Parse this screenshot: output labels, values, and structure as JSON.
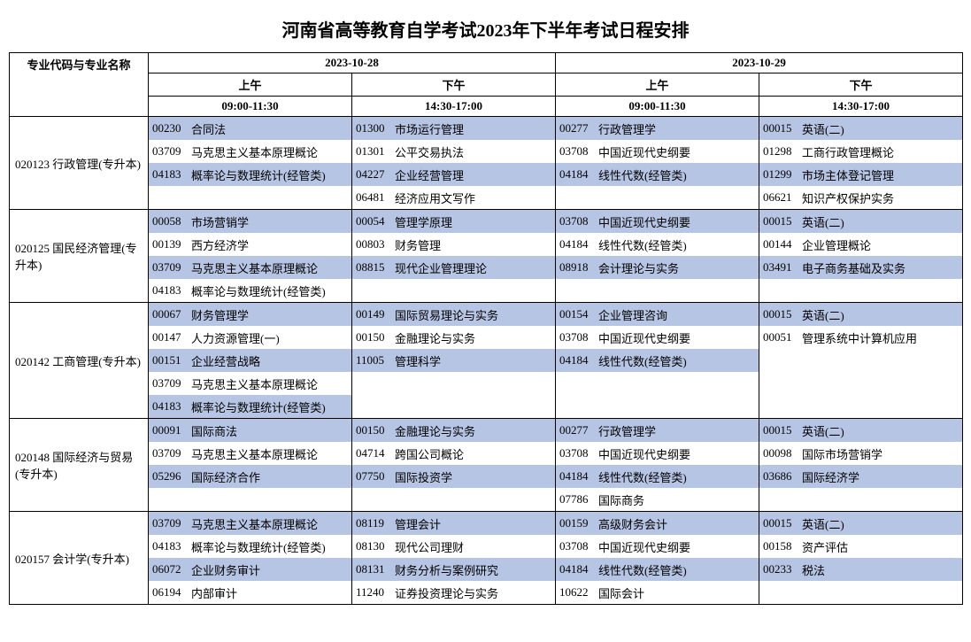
{
  "title": "河南省高等教育自学考试2023年下半年考试日程安排",
  "header": {
    "major_col": "专业代码与专业名称",
    "day1": "2023-10-28",
    "day2": "2023-10-29",
    "am": "上午",
    "pm": "下午",
    "am_time": "09:00-11:30",
    "pm_time": "14:30-17:00"
  },
  "colors": {
    "highlight_bg": "#b7c5e4",
    "border": "#000000"
  },
  "majors": [
    {
      "code": "020123",
      "name": "行政管理(专升本)",
      "sessions": [
        [
          {
            "code": "00230",
            "name": "合同法",
            "hl": true
          },
          {
            "code": "03709",
            "name": "马克思主义基本原理概论",
            "hl": false
          },
          {
            "code": "04183",
            "name": "概率论与数理统计(经管类)",
            "hl": true
          },
          {
            "code": "",
            "name": "",
            "hl": false
          }
        ],
        [
          {
            "code": "01300",
            "name": "市场运行管理",
            "hl": true
          },
          {
            "code": "01301",
            "name": "公平交易执法",
            "hl": false
          },
          {
            "code": "04227",
            "name": "企业经营管理",
            "hl": true
          },
          {
            "code": "06481",
            "name": "经济应用文写作",
            "hl": false
          }
        ],
        [
          {
            "code": "00277",
            "name": "行政管理学",
            "hl": true
          },
          {
            "code": "03708",
            "name": "中国近现代史纲要",
            "hl": false
          },
          {
            "code": "04184",
            "name": "线性代数(经管类)",
            "hl": true
          },
          {
            "code": "",
            "name": "",
            "hl": false
          }
        ],
        [
          {
            "code": "00015",
            "name": "英语(二)",
            "hl": true
          },
          {
            "code": "01298",
            "name": "工商行政管理概论",
            "hl": false
          },
          {
            "code": "01299",
            "name": "市场主体登记管理",
            "hl": true
          },
          {
            "code": "06621",
            "name": "知识产权保护实务",
            "hl": false
          }
        ]
      ]
    },
    {
      "code": "020125",
      "name": "国民经济管理(专升本)",
      "sessions": [
        [
          {
            "code": "00058",
            "name": "市场营销学",
            "hl": true
          },
          {
            "code": "00139",
            "name": "西方经济学",
            "hl": false
          },
          {
            "code": "03709",
            "name": "马克思主义基本原理概论",
            "hl": true
          },
          {
            "code": "04183",
            "name": "概率论与数理统计(经管类)",
            "hl": false
          }
        ],
        [
          {
            "code": "00054",
            "name": "管理学原理",
            "hl": true
          },
          {
            "code": "00803",
            "name": "财务管理",
            "hl": false
          },
          {
            "code": "08815",
            "name": "现代企业管理理论",
            "hl": true
          },
          {
            "code": "",
            "name": "",
            "hl": false
          }
        ],
        [
          {
            "code": "03708",
            "name": "中国近现代史纲要",
            "hl": true
          },
          {
            "code": "04184",
            "name": "线性代数(经管类)",
            "hl": false
          },
          {
            "code": "08918",
            "name": "会计理论与实务",
            "hl": true
          },
          {
            "code": "",
            "name": "",
            "hl": false
          }
        ],
        [
          {
            "code": "00015",
            "name": "英语(二)",
            "hl": true
          },
          {
            "code": "00144",
            "name": "企业管理概论",
            "hl": false
          },
          {
            "code": "03491",
            "name": "电子商务基础及实务",
            "hl": true
          },
          {
            "code": "",
            "name": "",
            "hl": false
          }
        ]
      ]
    },
    {
      "code": "020142",
      "name": "工商管理(专升本)",
      "sessions": [
        [
          {
            "code": "00067",
            "name": "财务管理学",
            "hl": true
          },
          {
            "code": "00147",
            "name": "人力资源管理(一)",
            "hl": false
          },
          {
            "code": "00151",
            "name": "企业经营战略",
            "hl": true
          },
          {
            "code": "03709",
            "name": "马克思主义基本原理概论",
            "hl": false
          },
          {
            "code": "04183",
            "name": "概率论与数理统计(经管类)",
            "hl": true
          }
        ],
        [
          {
            "code": "00149",
            "name": "国际贸易理论与实务",
            "hl": true
          },
          {
            "code": "00150",
            "name": "金融理论与实务",
            "hl": false
          },
          {
            "code": "11005",
            "name": "管理科学",
            "hl": true
          },
          {
            "code": "",
            "name": "",
            "hl": false
          },
          {
            "code": "",
            "name": "",
            "hl": false
          }
        ],
        [
          {
            "code": "00154",
            "name": "企业管理咨询",
            "hl": true
          },
          {
            "code": "03708",
            "name": "中国近现代史纲要",
            "hl": false
          },
          {
            "code": "04184",
            "name": "线性代数(经管类)",
            "hl": true
          },
          {
            "code": "",
            "name": "",
            "hl": false
          },
          {
            "code": "",
            "name": "",
            "hl": false
          }
        ],
        [
          {
            "code": "00015",
            "name": "英语(二)",
            "hl": true
          },
          {
            "code": "00051",
            "name": "管理系统中计算机应用",
            "hl": false
          },
          {
            "code": "",
            "name": "",
            "hl": false
          },
          {
            "code": "",
            "name": "",
            "hl": false
          },
          {
            "code": "",
            "name": "",
            "hl": false
          }
        ]
      ]
    },
    {
      "code": "020148",
      "name": "国际经济与贸易(专升本)",
      "sessions": [
        [
          {
            "code": "00091",
            "name": "国际商法",
            "hl": true
          },
          {
            "code": "03709",
            "name": "马克思主义基本原理概论",
            "hl": false
          },
          {
            "code": "05296",
            "name": "国际经济合作",
            "hl": true
          },
          {
            "code": "",
            "name": "",
            "hl": false
          }
        ],
        [
          {
            "code": "00150",
            "name": "金融理论与实务",
            "hl": true
          },
          {
            "code": "04714",
            "name": "跨国公司概论",
            "hl": false
          },
          {
            "code": "07750",
            "name": "国际投资学",
            "hl": true
          },
          {
            "code": "",
            "name": "",
            "hl": false
          }
        ],
        [
          {
            "code": "00277",
            "name": "行政管理学",
            "hl": true
          },
          {
            "code": "03708",
            "name": "中国近现代史纲要",
            "hl": false
          },
          {
            "code": "04184",
            "name": "线性代数(经管类)",
            "hl": true
          },
          {
            "code": "07786",
            "name": "国际商务",
            "hl": false
          }
        ],
        [
          {
            "code": "00015",
            "name": "英语(二)",
            "hl": true
          },
          {
            "code": "00098",
            "name": "国际市场营销学",
            "hl": false
          },
          {
            "code": "03686",
            "name": "国际经济学",
            "hl": true
          },
          {
            "code": "",
            "name": "",
            "hl": false
          }
        ]
      ]
    },
    {
      "code": "020157",
      "name": "会计学(专升本)",
      "sessions": [
        [
          {
            "code": "03709",
            "name": "马克思主义基本原理概论",
            "hl": true
          },
          {
            "code": "04183",
            "name": "概率论与数理统计(经管类)",
            "hl": false
          },
          {
            "code": "06072",
            "name": "企业财务审计",
            "hl": true
          },
          {
            "code": "06194",
            "name": "内部审计",
            "hl": false
          }
        ],
        [
          {
            "code": "08119",
            "name": "管理会计",
            "hl": true
          },
          {
            "code": "08130",
            "name": "现代公司理财",
            "hl": false
          },
          {
            "code": "08131",
            "name": "财务分析与案例研究",
            "hl": true
          },
          {
            "code": "11240",
            "name": "证券投资理论与实务",
            "hl": false
          }
        ],
        [
          {
            "code": "00159",
            "name": "高级财务会计",
            "hl": true
          },
          {
            "code": "03708",
            "name": "中国近现代史纲要",
            "hl": false
          },
          {
            "code": "04184",
            "name": "线性代数(经管类)",
            "hl": true
          },
          {
            "code": "10622",
            "name": "国际会计",
            "hl": false
          }
        ],
        [
          {
            "code": "00015",
            "name": "英语(二)",
            "hl": true
          },
          {
            "code": "00158",
            "name": "资产评估",
            "hl": false
          },
          {
            "code": "00233",
            "name": "税法",
            "hl": true
          },
          {
            "code": "",
            "name": "",
            "hl": false
          }
        ]
      ]
    }
  ]
}
